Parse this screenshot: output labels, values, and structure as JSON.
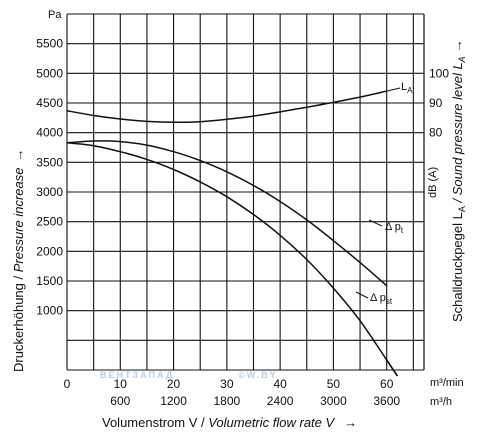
{
  "chart_data": {
    "type": "line",
    "x_axis": {
      "primary_unit": "m³/min",
      "primary_ticks": [
        0,
        10,
        20,
        30,
        40,
        50,
        60
      ],
      "secondary_unit": "m³/h",
      "secondary_ticks": [
        600,
        1200,
        1800,
        2400,
        3000,
        3600
      ],
      "label_prefix": "Volumenstrom V / ",
      "label_italic": "Volumetric flow rate V",
      "arrow": "→",
      "range": [
        0,
        67
      ]
    },
    "y_axis_left": {
      "unit": "Pa",
      "ticks": [
        1000,
        1500,
        2000,
        2500,
        3000,
        3500,
        4000,
        4500,
        5000,
        5500
      ],
      "label_prefix": "Druckerhöhung / ",
      "label_italic": "Pressure increase",
      "arrow": "→",
      "range": [
        0,
        6000
      ]
    },
    "y_axis_right": {
      "ticks": [
        80,
        90,
        100
      ],
      "unit": "dB (A)",
      "label_prefix": "Schalldruckpegel L",
      "label_sub": "A",
      "label_italic": " / Sound pressure level L",
      "label_italic_sub": "A",
      "arrow": "→"
    },
    "series": [
      {
        "name": "L",
        "name_sub": "A",
        "axis": "right",
        "x": [
          0,
          5,
          10,
          15,
          20,
          25,
          30,
          35,
          40,
          45,
          50,
          55,
          60
        ],
        "y": [
          4370,
          4290,
          4230,
          4190,
          4175,
          4185,
          4225,
          4280,
          4350,
          4430,
          4510,
          4600,
          4700
        ]
      },
      {
        "name": "Δ p",
        "name_sub": "t",
        "axis": "left",
        "x": [
          0,
          5,
          10,
          15,
          20,
          25,
          30,
          35,
          40,
          45,
          50,
          55,
          60,
          62
        ],
        "y": [
          3830,
          3860,
          3850,
          3790,
          3680,
          3530,
          3340,
          3110,
          2840,
          2530,
          2180,
          1810,
          1420,
          1650
        ]
      },
      {
        "name": "Δ p",
        "name_sub": "st",
        "axis": "left",
        "x": [
          0,
          5,
          10,
          15,
          20,
          25,
          30,
          35,
          40,
          45,
          50,
          55,
          60,
          62
        ],
        "y": [
          3830,
          3780,
          3680,
          3550,
          3380,
          3170,
          2920,
          2620,
          2270,
          1860,
          1380,
          830,
          170,
          -100
        ]
      }
    ]
  },
  "watermark": "ВЕНТЗАПАД",
  "watermark_suffix": "©W.BY"
}
